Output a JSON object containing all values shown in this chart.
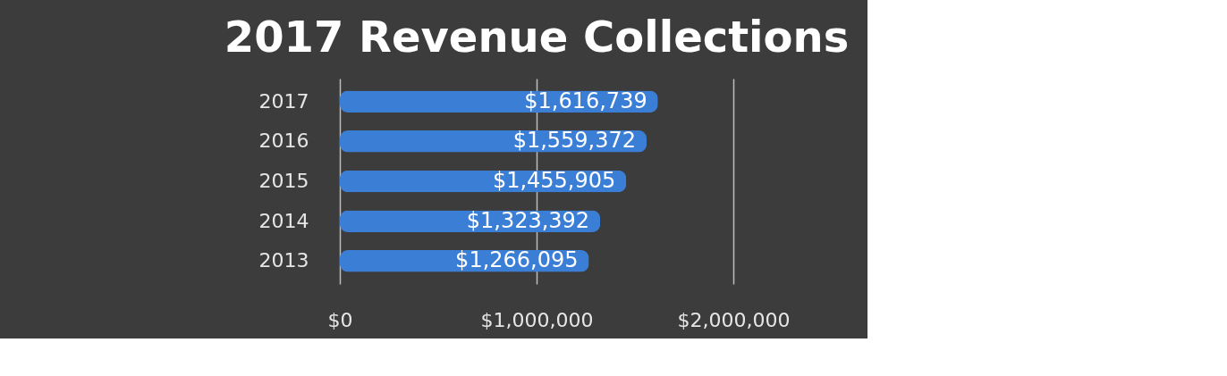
{
  "chart_data": {
    "type": "bar",
    "orientation": "horizontal",
    "title": "2017 Revenue Collections",
    "categories": [
      "2017",
      "2016",
      "2015",
      "2014",
      "2013"
    ],
    "values": [
      1616739,
      1559372,
      1455905,
      1323392,
      1266095
    ],
    "value_labels": [
      "$1,616,739",
      "$1,559,372",
      "$1,455,905",
      "$1,323,392",
      "$1,266,095"
    ],
    "color": "#3b7ed6",
    "xlim": [
      0,
      2000000
    ],
    "xticks": [
      {
        "value": 0,
        "label": "$0"
      },
      {
        "value": 1000000,
        "label": "$1,000,000"
      },
      {
        "value": 2000000,
        "label": "$2,000,000"
      }
    ],
    "grid": "x"
  }
}
